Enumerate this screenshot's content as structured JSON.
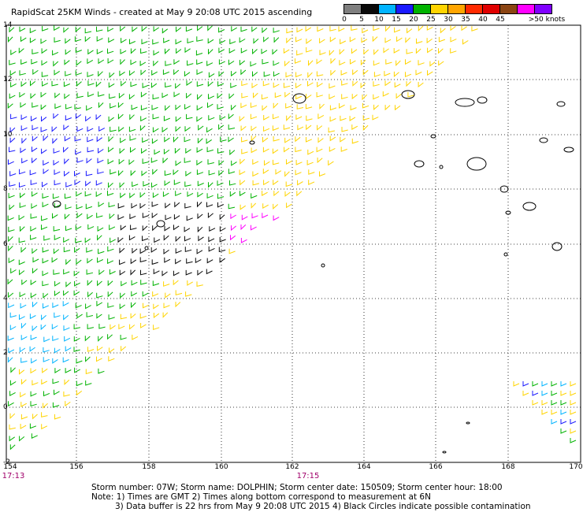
{
  "header": {
    "title": "RapidScat 25KM Winds - created at May  9 20:08 UTC 2015  ascending"
  },
  "colorbar": {
    "labels": [
      "0",
      "5",
      "10",
      "15",
      "20",
      "25",
      "30",
      "35",
      "40",
      "45",
      ">50 knots"
    ],
    "colors": [
      "#7f7f7f",
      "#0a0a0a",
      "#00b4ff",
      "#1a1aff",
      "#00b300",
      "#ffd400",
      "#ffa500",
      "#ff2a00",
      "#e00000",
      "#8b4513",
      "#ff00ff",
      "#8000ff"
    ]
  },
  "axes": {
    "lon_ticks": [
      "154",
      "156",
      "158",
      "160",
      "162",
      "164",
      "166",
      "168",
      "170"
    ],
    "lat_ticks": [
      "14",
      "12",
      "10",
      "8",
      "6",
      "4",
      "2",
      "0",
      "-2"
    ]
  },
  "times": {
    "left": "17:13",
    "mid": "17:15"
  },
  "footer": {
    "line1": "Storm number: 07W;  Storm name: DOLPHIN;  Storm center date: 150509;  Storm center hour: 18:00",
    "line2": "Note: 1) Times are GMT  2) Times along bottom correspond to measurement at 6N",
    "line3": "3) Data buffer is 22 hrs from May  9 20:08 UTC 2015  4) Black Circles indicate possible contamination"
  }
}
